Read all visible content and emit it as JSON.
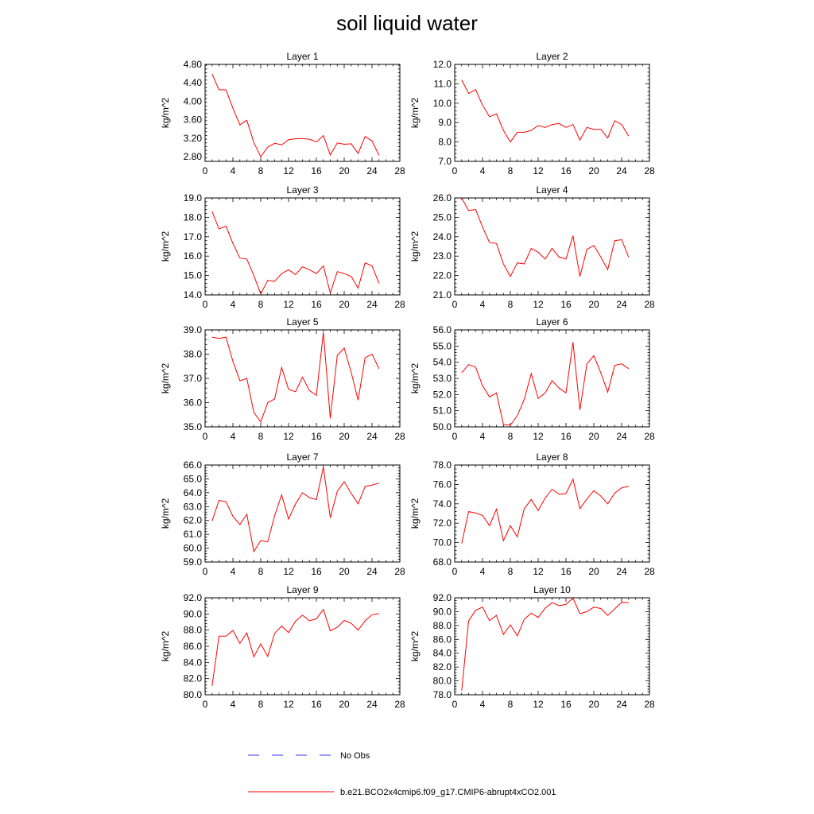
{
  "title": "soil liquid water",
  "chart_data": {
    "type": "line",
    "title": "soil liquid water",
    "panels": [
      {
        "title": "Layer 1",
        "ylabel": "kg/m^2",
        "ylim": [
          2.7,
          4.8
        ],
        "yticks": [
          "2.80",
          "3.20",
          "3.60",
          "4.00",
          "4.40",
          "4.80"
        ],
        "xlim": [
          0,
          28
        ],
        "xticks": [
          "0",
          "4",
          "8",
          "12",
          "16",
          "20",
          "24",
          "28"
        ],
        "x": [
          1,
          2,
          3,
          4,
          5,
          6,
          7,
          8,
          9,
          10,
          11,
          12,
          13,
          14,
          15,
          16,
          17,
          18,
          19,
          20,
          21,
          22,
          23,
          24,
          25
        ],
        "values": [
          4.59,
          4.25,
          4.25,
          3.85,
          3.49,
          3.59,
          3.11,
          2.8,
          3.01,
          3.09,
          3.06,
          3.17,
          3.19,
          3.19,
          3.18,
          3.12,
          3.26,
          2.84,
          3.1,
          3.07,
          3.08,
          2.87,
          3.24,
          3.14,
          2.83
        ]
      },
      {
        "title": "Layer 2",
        "ylabel": "kg/m^2",
        "ylim": [
          7.0,
          12.0
        ],
        "yticks": [
          "7.0",
          "8.0",
          "9.0",
          "10.0",
          "11.0",
          "12.0"
        ],
        "xlim": [
          0,
          28
        ],
        "xticks": [
          "0",
          "4",
          "8",
          "12",
          "16",
          "20",
          "24",
          "28"
        ],
        "x": [
          1,
          2,
          3,
          4,
          5,
          6,
          7,
          8,
          9,
          10,
          11,
          12,
          13,
          14,
          15,
          16,
          17,
          18,
          19,
          20,
          21,
          22,
          23,
          24,
          25
        ],
        "values": [
          11.2,
          10.5,
          10.7,
          9.9,
          9.3,
          9.45,
          8.6,
          8.0,
          8.5,
          8.5,
          8.6,
          8.85,
          8.75,
          8.9,
          8.95,
          8.75,
          8.9,
          8.1,
          8.75,
          8.65,
          8.65,
          8.2,
          9.1,
          8.9,
          8.3
        ]
      },
      {
        "title": "Layer 3",
        "ylabel": "kg/m^2",
        "ylim": [
          14.0,
          19.0
        ],
        "yticks": [
          "14.0",
          "15.0",
          "16.0",
          "17.0",
          "18.0",
          "19.0"
        ],
        "xlim": [
          0,
          28
        ],
        "xticks": [
          "0",
          "4",
          "8",
          "12",
          "16",
          "20",
          "24",
          "28"
        ],
        "x": [
          1,
          2,
          3,
          4,
          5,
          6,
          7,
          8,
          9,
          10,
          11,
          12,
          13,
          14,
          15,
          16,
          17,
          18,
          19,
          20,
          21,
          22,
          23,
          24,
          25
        ],
        "values": [
          18.3,
          17.4,
          17.55,
          16.65,
          15.9,
          15.85,
          15.0,
          14.05,
          14.75,
          14.7,
          15.1,
          15.3,
          15.05,
          15.45,
          15.3,
          15.1,
          15.5,
          14.1,
          15.2,
          15.1,
          14.95,
          14.35,
          15.65,
          15.5,
          14.6
        ]
      },
      {
        "title": "Layer 4",
        "ylabel": "kg/m^2",
        "ylim": [
          21.0,
          26.0
        ],
        "yticks": [
          "21.0",
          "22.0",
          "23.0",
          "24.0",
          "25.0",
          "26.0"
        ],
        "xlim": [
          0,
          28
        ],
        "xticks": [
          "0",
          "4",
          "8",
          "12",
          "16",
          "20",
          "24",
          "28"
        ],
        "x": [
          1,
          2,
          3,
          4,
          5,
          6,
          7,
          8,
          9,
          10,
          11,
          12,
          13,
          14,
          15,
          16,
          17,
          18,
          19,
          20,
          21,
          22,
          23,
          24,
          25
        ],
        "values": [
          26.0,
          25.35,
          25.4,
          24.5,
          23.7,
          23.65,
          22.6,
          21.95,
          22.65,
          22.6,
          23.4,
          23.2,
          22.85,
          23.4,
          22.95,
          22.85,
          24.05,
          21.95,
          23.35,
          23.55,
          22.95,
          22.3,
          23.8,
          23.85,
          22.95
        ]
      },
      {
        "title": "Layer 5",
        "ylabel": "kg/m^2",
        "ylim": [
          35.0,
          39.0
        ],
        "yticks": [
          "35.0",
          "36.0",
          "37.0",
          "38.0",
          "39.0"
        ],
        "xlim": [
          0,
          28
        ],
        "xticks": [
          "0",
          "4",
          "8",
          "12",
          "16",
          "20",
          "24",
          "28"
        ],
        "x": [
          1,
          2,
          3,
          4,
          5,
          6,
          7,
          8,
          9,
          10,
          11,
          12,
          13,
          14,
          15,
          16,
          17,
          18,
          19,
          20,
          21,
          22,
          23,
          24,
          25
        ],
        "values": [
          38.7,
          38.65,
          38.7,
          37.7,
          36.9,
          37.0,
          35.6,
          35.2,
          36.0,
          36.15,
          37.45,
          36.55,
          36.45,
          37.05,
          36.5,
          36.3,
          38.9,
          35.35,
          37.95,
          38.25,
          37.25,
          36.1,
          37.85,
          38.0,
          37.4
        ]
      },
      {
        "title": "Layer 6",
        "ylabel": "kg/m^2",
        "ylim": [
          50.0,
          56.0
        ],
        "yticks": [
          "50.0",
          "51.0",
          "52.0",
          "53.0",
          "54.0",
          "55.0",
          "56.0"
        ],
        "xlim": [
          0,
          28
        ],
        "xticks": [
          "0",
          "4",
          "8",
          "12",
          "16",
          "20",
          "24",
          "28"
        ],
        "x": [
          1,
          2,
          3,
          4,
          5,
          6,
          7,
          8,
          9,
          10,
          11,
          12,
          13,
          14,
          15,
          16,
          17,
          18,
          19,
          20,
          21,
          22,
          23,
          24,
          25
        ],
        "values": [
          53.35,
          53.85,
          53.7,
          52.55,
          51.85,
          52.1,
          50.15,
          50.1,
          50.7,
          51.7,
          53.3,
          51.75,
          52.1,
          52.85,
          52.4,
          52.1,
          55.25,
          51.05,
          53.9,
          54.4,
          53.35,
          52.15,
          53.8,
          53.9,
          53.6
        ]
      },
      {
        "title": "Layer 7",
        "ylabel": "kg/m^2",
        "ylim": [
          59.0,
          66.0
        ],
        "yticks": [
          "59.0",
          "60.0",
          "61.0",
          "62.0",
          "63.0",
          "64.0",
          "65.0",
          "66.0"
        ],
        "xlim": [
          0,
          28
        ],
        "xticks": [
          "0",
          "4",
          "8",
          "12",
          "16",
          "20",
          "24",
          "28"
        ],
        "x": [
          1,
          2,
          3,
          4,
          5,
          6,
          7,
          8,
          9,
          10,
          11,
          12,
          13,
          14,
          15,
          16,
          17,
          18,
          19,
          20,
          21,
          22,
          23,
          24,
          25
        ],
        "values": [
          61.95,
          63.45,
          63.35,
          62.3,
          61.7,
          62.45,
          59.75,
          60.55,
          60.45,
          62.35,
          63.85,
          62.1,
          63.2,
          64.0,
          63.65,
          63.5,
          65.85,
          62.2,
          64.1,
          64.8,
          63.95,
          63.2,
          64.45,
          64.55,
          64.7
        ]
      },
      {
        "title": "Layer 8",
        "ylabel": "kg/m^2",
        "ylim": [
          68.0,
          78.0
        ],
        "yticks": [
          "68.0",
          "70.0",
          "72.0",
          "74.0",
          "76.0",
          "78.0"
        ],
        "xlim": [
          0,
          28
        ],
        "xticks": [
          "0",
          "4",
          "8",
          "12",
          "16",
          "20",
          "24",
          "28"
        ],
        "x": [
          1,
          2,
          3,
          4,
          5,
          6,
          7,
          8,
          9,
          10,
          11,
          12,
          13,
          14,
          15,
          16,
          17,
          18,
          19,
          20,
          21,
          22,
          23,
          24,
          25
        ],
        "values": [
          69.9,
          73.2,
          73.05,
          72.8,
          71.75,
          73.45,
          70.2,
          71.75,
          70.6,
          73.5,
          74.45,
          73.3,
          74.6,
          75.5,
          75.0,
          75.05,
          76.55,
          73.5,
          74.5,
          75.35,
          74.8,
          74.0,
          75.1,
          75.65,
          75.8
        ]
      },
      {
        "title": "Layer 9",
        "ylabel": "kg/m^2",
        "ylim": [
          80.0,
          92.0
        ],
        "yticks": [
          "80.0",
          "82.0",
          "84.0",
          "86.0",
          "88.0",
          "90.0",
          "92.0"
        ],
        "xlim": [
          0,
          28
        ],
        "xticks": [
          "0",
          "4",
          "8",
          "12",
          "16",
          "20",
          "24",
          "28"
        ],
        "x": [
          1,
          2,
          3,
          4,
          5,
          6,
          7,
          8,
          9,
          10,
          11,
          12,
          13,
          14,
          15,
          16,
          17,
          18,
          19,
          20,
          21,
          22,
          23,
          24,
          25
        ],
        "values": [
          81.1,
          87.25,
          87.25,
          87.95,
          86.35,
          87.65,
          84.7,
          86.3,
          84.75,
          87.6,
          88.5,
          87.7,
          89.1,
          89.85,
          89.15,
          89.4,
          90.55,
          87.9,
          88.35,
          89.2,
          88.85,
          88.0,
          89.15,
          89.9,
          90.05
        ]
      },
      {
        "title": "Layer 10",
        "ylabel": "kg/m^2",
        "ylim": [
          78.0,
          92.0
        ],
        "yticks": [
          "78.0",
          "80.0",
          "82.0",
          "84.0",
          "86.0",
          "88.0",
          "90.0",
          "92.0"
        ],
        "xlim": [
          0,
          28
        ],
        "xticks": [
          "0",
          "4",
          "8",
          "12",
          "16",
          "20",
          "24",
          "28"
        ],
        "x": [
          1,
          2,
          3,
          4,
          5,
          6,
          7,
          8,
          9,
          10,
          11,
          12,
          13,
          14,
          15,
          16,
          17,
          18,
          19,
          20,
          21,
          22,
          23,
          24,
          25
        ],
        "values": [
          78.6,
          88.65,
          90.2,
          90.65,
          88.7,
          89.45,
          86.7,
          88.1,
          86.5,
          88.9,
          89.8,
          89.15,
          90.5,
          91.3,
          90.85,
          91.05,
          91.95,
          89.7,
          90.0,
          90.65,
          90.45,
          89.45,
          90.4,
          91.35,
          91.3
        ]
      }
    ],
    "series_color": "#ff0000",
    "legend": [
      {
        "label": "No Obs",
        "style": "dashed",
        "color": "#3333ff"
      },
      {
        "label": "b.e21.BCO2x4cmip6.f09_g17.CMIP6-abrupt4xCO2.001",
        "style": "solid",
        "color": "#ff0000"
      }
    ]
  }
}
